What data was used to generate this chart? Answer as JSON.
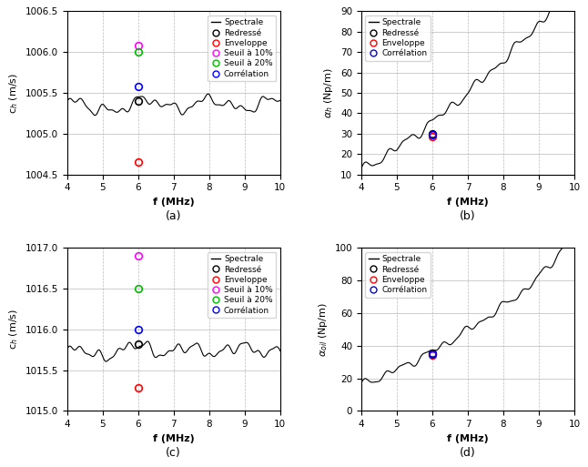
{
  "fig_width": 6.46,
  "fig_height": 5.13,
  "dpi": 100,
  "subplots": {
    "ax_a": {
      "label": "(a)",
      "ylabel_text": "c$_h$ (m/s)",
      "ylim": [
        1004.5,
        1006.5
      ],
      "yticks": [
        1004.5,
        1005.0,
        1005.5,
        1006.0,
        1006.5
      ],
      "xlim": [
        4,
        10
      ],
      "xticks": [
        4,
        5,
        6,
        7,
        8,
        9,
        10
      ],
      "points": {
        "redresse": [
          6.0,
          1005.4
        ],
        "enveloppe": [
          6.0,
          1004.65
        ],
        "seuil10": [
          6.0,
          1006.08
        ],
        "seuil20": [
          6.0,
          1006.0
        ],
        "correlation": [
          6.0,
          1005.58
        ]
      }
    },
    "ax_b": {
      "label": "(b)",
      "ylabel_text": "$\\alpha_h$ (Np/m)",
      "ylim": [
        10,
        90
      ],
      "yticks": [
        10,
        20,
        30,
        40,
        50,
        60,
        70,
        80,
        90
      ],
      "xlim": [
        4,
        10
      ],
      "xticks": [
        4,
        5,
        6,
        7,
        8,
        9,
        10
      ],
      "points": {
        "redresse": [
          6.0,
          30.0
        ],
        "enveloppe": [
          6.0,
          28.5
        ],
        "correlation": [
          6.0,
          29.5
        ]
      }
    },
    "ax_c": {
      "label": "(c)",
      "ylabel_text": "c$_h$ (m/s)",
      "ylim": [
        1015.0,
        1017.0
      ],
      "yticks": [
        1015.0,
        1015.5,
        1016.0,
        1016.5,
        1017.0
      ],
      "xlim": [
        4,
        10
      ],
      "xticks": [
        4,
        5,
        6,
        7,
        8,
        9,
        10
      ],
      "points": {
        "redresse": [
          6.0,
          1015.82
        ],
        "enveloppe": [
          6.0,
          1015.28
        ],
        "seuil10": [
          6.0,
          1016.9
        ],
        "seuil20": [
          6.0,
          1016.5
        ],
        "correlation": [
          6.0,
          1016.0
        ]
      }
    },
    "ax_d": {
      "label": "(d)",
      "ylabel_text": "$\\alpha_{oil}$ (Np/m)",
      "ylim": [
        0,
        100
      ],
      "yticks": [
        0,
        20,
        40,
        60,
        80,
        100
      ],
      "xlim": [
        4,
        10
      ],
      "xticks": [
        4,
        5,
        6,
        7,
        8,
        9,
        10
      ],
      "points": {
        "redresse": [
          6.0,
          35.5
        ],
        "enveloppe": [
          6.0,
          34.5
        ],
        "correlation": [
          6.0,
          35.0
        ]
      }
    }
  },
  "colors": {
    "redresse": "#000000",
    "enveloppe": "#ff0000",
    "seuil10": "#ff00ff",
    "seuil20": "#00bb00",
    "correlation": "#0000ff",
    "line": "#000000",
    "grid_major": "#aaaaaa",
    "grid_minor": "#cccccc"
  },
  "xlabel": "f (MHz)"
}
